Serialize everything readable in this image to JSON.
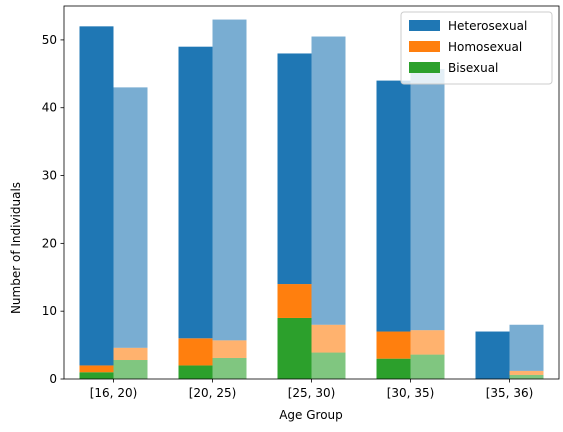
{
  "chart_data": {
    "type": "bar",
    "title": "",
    "xlabel": "Age Group",
    "ylabel": "Number of Individuals",
    "categories": [
      "[16, 20)",
      "[20, 25)",
      "[25, 30)",
      "[30, 35)",
      "[35, 36)"
    ],
    "ylim": [
      0,
      55
    ],
    "yticks": [
      0,
      10,
      20,
      30,
      40,
      50
    ],
    "grid": false,
    "legend_position": "top-right",
    "stacked": true,
    "groups": [
      {
        "position": "left",
        "opacity": 1.0,
        "series": [
          {
            "name": "Bisexual",
            "color": "#2ca02c",
            "values": [
              1,
              2,
              9,
              3,
              0
            ]
          },
          {
            "name": "Homosexual",
            "color": "#ff7f0e",
            "values": [
              1,
              4,
              5,
              4,
              0
            ]
          },
          {
            "name": "Heterosexual",
            "color": "#1f77b4",
            "values": [
              50,
              43,
              34,
              37,
              7
            ]
          }
        ]
      },
      {
        "position": "right",
        "opacity": 0.6,
        "series": [
          {
            "name": "Bisexual",
            "color": "#2ca02c",
            "values": [
              2.8,
              3.1,
              3.9,
              3.6,
              0.6
            ]
          },
          {
            "name": "Homosexual",
            "color": "#ff7f0e",
            "values": [
              1.8,
              2.6,
              4.1,
              3.6,
              0.6
            ]
          },
          {
            "name": "Heterosexual",
            "color": "#1f77b4",
            "values": [
              38.4,
              47.3,
              42.5,
              38.5,
              6.8
            ]
          }
        ]
      }
    ],
    "legend": [
      {
        "label": "Heterosexual",
        "color": "#1f77b4"
      },
      {
        "label": "Homosexual",
        "color": "#ff7f0e"
      },
      {
        "label": "Bisexual",
        "color": "#2ca02c"
      }
    ]
  }
}
